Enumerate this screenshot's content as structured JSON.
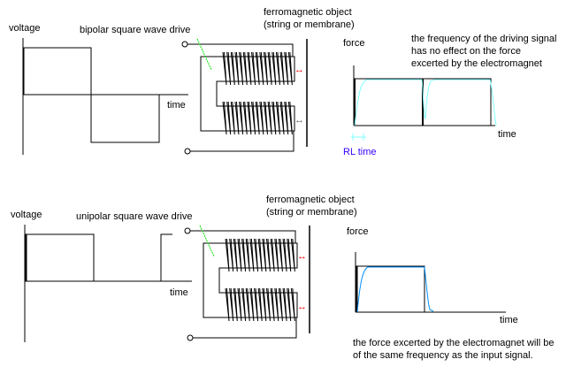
{
  "top": {
    "voltage_label": "voltage",
    "time_label": "time",
    "drive_label": "bipolar square wave drive",
    "object_label_line1": "ferromagnetic object",
    "object_label_line2": "(string or membrane)",
    "force_label": "force",
    "force_time_label": "time",
    "rl_time_label": "RL time",
    "note_lines": [
      "the frequency of the driving signal",
      "has no effect on the force",
      "excerted by the electromagnet"
    ],
    "arrow_glyph": "↔"
  },
  "bottom": {
    "voltage_label": "voltage",
    "time_label": "time",
    "drive_label": "unipolar square wave drive",
    "object_label_line1": "ferromagnetic object",
    "object_label_line2": "(string or membrane)",
    "force_label": "force",
    "force_time_label": "time",
    "note_lines": [
      "the force excerted by the electromagnet will be",
      "of the same frequency as the input signal."
    ],
    "arrow_glyph": "↔"
  },
  "colors": {
    "pointer": "#00e000",
    "force_arrow_active": "#ff0000",
    "force_arrow_idle": "#606060",
    "rl_time": "#3300ff",
    "top_response": "#80ffff",
    "bottom_response": "#0090ff"
  }
}
